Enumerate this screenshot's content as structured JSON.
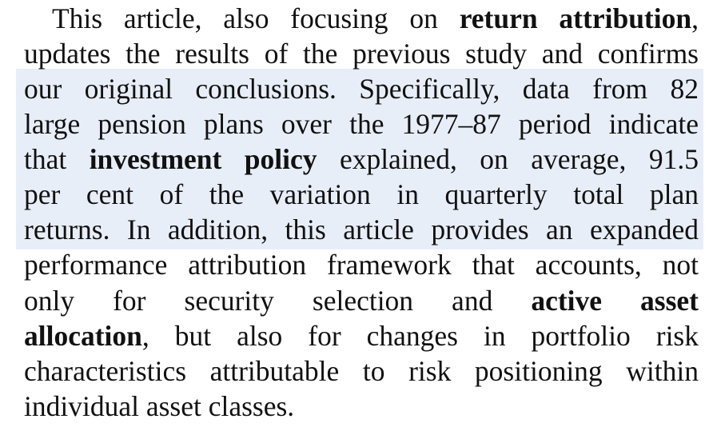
{
  "paragraph": {
    "highlight_color": "#e8eef8",
    "lines": [
      {
        "parts": [
          "This article, also focusing on ",
          "return attribution",
          ","
        ]
      },
      {
        "parts": [
          "updates the results of the previous study and confirms"
        ]
      },
      {
        "parts": [
          "our original conclusions. Specifically, data from 82"
        ]
      },
      {
        "parts": [
          "large pension plans over the 1977–87 period indicate"
        ]
      },
      {
        "parts": [
          "that ",
          "investment policy",
          " explained, on average, 91.5"
        ]
      },
      {
        "parts": [
          "per cent of the variation in quarterly total plan"
        ]
      },
      {
        "parts": [
          "returns. In addition, this article provides an expanded"
        ]
      },
      {
        "parts": [
          "performance attribution framework that accounts, not"
        ]
      },
      {
        "parts": [
          "only for security selection and ",
          "active asset"
        ]
      },
      {
        "parts": [
          "allocation",
          ", but also for changes in portfolio risk"
        ]
      },
      {
        "parts": [
          "characteristics attributable to risk positioning within"
        ]
      },
      {
        "parts": [
          "individual asset classes."
        ]
      }
    ]
  }
}
